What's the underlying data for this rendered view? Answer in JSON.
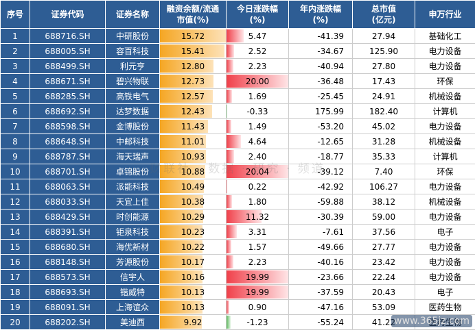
{
  "headers": [
    "序号",
    "证券代码",
    "证券名称",
    "融资余额/流通\n市值(%)",
    "今日涨跌幅\n(%)",
    "年内涨跌幅\n(%)",
    "总市值\n(亿元)",
    "申万行业"
  ],
  "rows": [
    {
      "no": "1",
      "code": "688716.SH",
      "name": "中研股份",
      "margin": "15.72",
      "today": "5.47",
      "ytd": "-41.39",
      "cap": "27.94",
      "industry": "基础化工"
    },
    {
      "no": "2",
      "code": "688005.SH",
      "name": "容百科技",
      "margin": "15.41",
      "today": "2.52",
      "ytd": "-34.67",
      "cap": "125.90",
      "industry": "电力设备"
    },
    {
      "no": "3",
      "code": "688499.SH",
      "name": "利元亨",
      "margin": "12.80",
      "today": "2.23",
      "ytd": "-40.94",
      "cap": "27.80",
      "industry": "电力设备"
    },
    {
      "no": "4",
      "code": "688671.SH",
      "name": "碧兴物联",
      "margin": "12.73",
      "today": "20.00",
      "ytd": "-36.48",
      "cap": "17.43",
      "industry": "环保"
    },
    {
      "no": "5",
      "code": "688285.SH",
      "name": "高铁电气",
      "margin": "12.57",
      "today": "1.69",
      "ytd": "-25.45",
      "cap": "24.91",
      "industry": "机械设备"
    },
    {
      "no": "6",
      "code": "688692.SH",
      "name": "达梦数据",
      "margin": "12.43",
      "today": "-0.33",
      "ytd": "175.99",
      "cap": "182.40",
      "industry": "计算机"
    },
    {
      "no": "7",
      "code": "688598.SH",
      "name": "金博股份",
      "margin": "11.43",
      "today": "1.49",
      "ytd": "-53.20",
      "cap": "45.02",
      "industry": "电力设备"
    },
    {
      "no": "8",
      "code": "688648.SH",
      "name": "中邮科技",
      "margin": "11.01",
      "today": "4.64",
      "ytd": "-12.65",
      "cap": "31.28",
      "industry": "机械设备"
    },
    {
      "no": "9",
      "code": "688787.SH",
      "name": "海天瑞声",
      "margin": "10.93",
      "today": "2.40",
      "ytd": "-18.77",
      "cap": "35.33",
      "industry": "计算机"
    },
    {
      "no": "10",
      "code": "688701.SH",
      "name": "卓锦股份",
      "margin": "10.88",
      "today": "20.04",
      "ytd": "-39.12",
      "cap": "7.40",
      "industry": "环保"
    },
    {
      "no": "11",
      "code": "688063.SH",
      "name": "派能科技",
      "margin": "10.49",
      "today": "0.22",
      "ytd": "-42.92",
      "cap": "106.27",
      "industry": "电力设备"
    },
    {
      "no": "12",
      "code": "688033.SH",
      "name": "天宜上佳",
      "margin": "10.38",
      "today": "1.80",
      "ytd": "-59.88",
      "cap": "38.12",
      "industry": "机械设备"
    },
    {
      "no": "13",
      "code": "688429.SH",
      "name": "时创能源",
      "margin": "10.29",
      "today": "11.32",
      "ytd": "-30.39",
      "cap": "59.00",
      "industry": "电力设备"
    },
    {
      "no": "14",
      "code": "688391.SH",
      "name": "钜泉科技",
      "margin": "10.23",
      "today": "3.31",
      "ytd": "-7.61",
      "cap": "37.56",
      "industry": "电子"
    },
    {
      "no": "15",
      "code": "688680.SH",
      "name": "海优新材",
      "margin": "10.22",
      "today": "1.57",
      "ytd": "-49.66",
      "cap": "27.77",
      "industry": "电力设备"
    },
    {
      "no": "16",
      "code": "688148.SH",
      "name": "芳源股份",
      "margin": "10.17",
      "today": "2.23",
      "ytd": "-40.16",
      "cap": "23.42",
      "industry": "电力设备"
    },
    {
      "no": "17",
      "code": "688573.SH",
      "name": "信宇人",
      "margin": "10.16",
      "today": "19.99",
      "ytd": "-23.66",
      "cap": "22.24",
      "industry": "电力设备"
    },
    {
      "no": "18",
      "code": "688693.SH",
      "name": "锴威特",
      "margin": "10.13",
      "today": "19.99",
      "ytd": "-37.59",
      "cap": "20.43",
      "industry": "电子"
    },
    {
      "no": "19",
      "code": "688091.SH",
      "name": "上海谊众",
      "margin": "10.13",
      "today": "0.90",
      "ytd": "-47.16",
      "cap": "53.09",
      "industry": "医药生物"
    },
    {
      "no": "20",
      "code": "688202.SH",
      "name": "美迪西",
      "margin": "9.92",
      "today": "-1.23",
      "ytd": "-55.24",
      "cap": "41.22",
      "industry": "医药生物"
    }
  ],
  "scales": {
    "margin_max": 15.72,
    "today_max": 20.04
  },
  "colors": {
    "header": "#2e5d94",
    "margin_bar": "#f5a623",
    "up_bar": "#f0404a",
    "down_bar": "#5cb85c"
  },
  "watermark": "财联社 · 数据 · 研究 · 频道",
  "corner_logo": "www.365jz.com"
}
